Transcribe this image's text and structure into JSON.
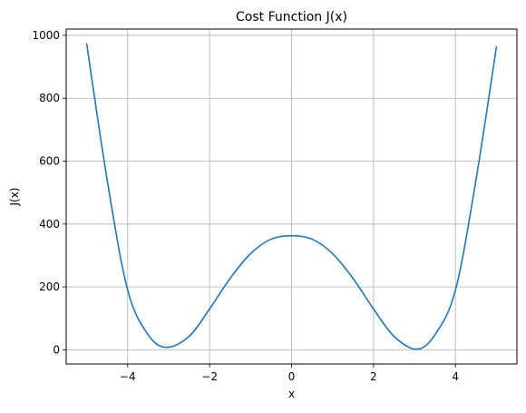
{
  "chart_data": {
    "type": "line",
    "title": "Cost Function J(x)",
    "xlabel": "x",
    "ylabel": "J(x)",
    "xlim": [
      -5.5,
      5.5
    ],
    "ylim": [
      -45,
      1020
    ],
    "xticks": [
      -4,
      -2,
      0,
      2,
      4
    ],
    "xtick_labels": [
      "−4",
      "−2",
      "0",
      "2",
      "4"
    ],
    "yticks": [
      0,
      200,
      400,
      600,
      800,
      1000
    ],
    "ytick_labels": [
      "0",
      "200",
      "400",
      "600",
      "800",
      "1000"
    ],
    "grid": true,
    "series": [
      {
        "color": "#1f77b4",
        "x": [
          -5,
          -4.5,
          -4,
          -3.5,
          -3.05,
          -2.5,
          -2,
          -1.5,
          -1,
          -0.5,
          0,
          0.5,
          1,
          1.5,
          2,
          2.5,
          3.05,
          3.5,
          4,
          4.5,
          5
        ],
        "y": [
          973,
          540,
          190,
          48,
          8,
          43,
          130,
          227,
          306,
          352,
          363,
          352,
          306,
          227,
          130,
          43,
          2,
          48,
          190,
          540,
          963
        ]
      }
    ]
  }
}
